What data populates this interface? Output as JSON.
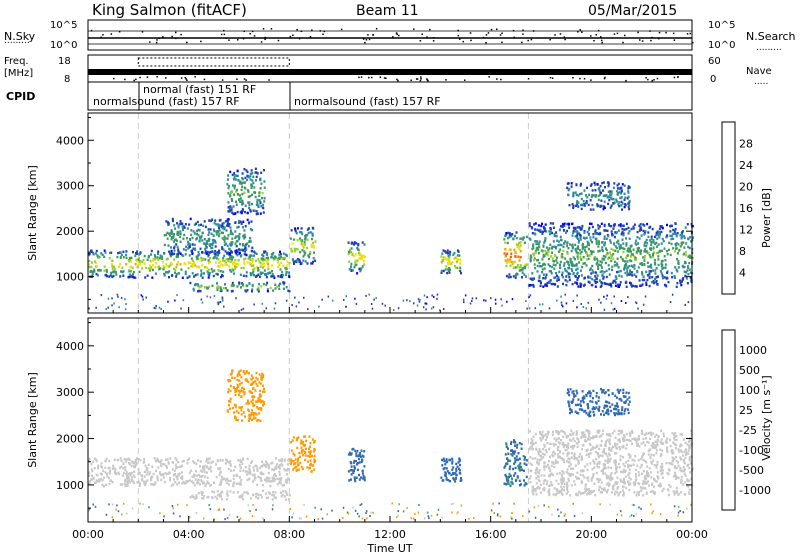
{
  "header": {
    "title": "King Salmon (fitACF)",
    "beam": "Beam 11",
    "date": "05/Mar/2015"
  },
  "top_panels": {
    "nsky_label": "N.Sky",
    "nsky_ticks": [
      "10^5",
      "10^0"
    ],
    "nsearch_label": "N.Search",
    "nsearch_ticks": [
      "10^5",
      "10^0"
    ],
    "freq_label": "Freq.",
    "freq_unit": "[MHz]",
    "freq_ticks": [
      "18",
      "8"
    ],
    "nave_label": "Nave",
    "nave_ticks": [
      "60",
      "0"
    ],
    "cpid_label": "CPID",
    "cpid_segments": [
      "normalsound (fast) 157 RF",
      "normal (fast) 151 RF",
      "normalsound (fast) 157 RF"
    ]
  },
  "colors": {
    "power_scale": [
      "#0000ff",
      "#1d3fb6",
      "#2f8a9a",
      "#3a9a5c",
      "#9acd32",
      "#f0e000",
      "#f6a000",
      "#f06000",
      "#ff0000"
    ],
    "velocity_scale": [
      "#ff0000",
      "#ff5a00",
      "#ff9a00",
      "#c8c8c8",
      "#c8c8c8",
      "#60c030",
      "#3a9a5c",
      "#2f6ab0",
      "#1d3fb6"
    ],
    "ground_scatter": "#c8c8c8"
  },
  "chart_data": [
    {
      "type": "heatmap",
      "panel": "power",
      "ylabel": "Slant Range [km]",
      "xlim": [
        "00:00",
        "24:00"
      ],
      "ylim": [
        200,
        4600
      ],
      "y_ticks": [
        1000,
        2000,
        3000,
        4000
      ],
      "x_ticks": [
        "00:00",
        "04:00",
        "08:00",
        "12:00",
        "16:00",
        "20:00",
        "00:00"
      ],
      "colorbar_label": "Power [dB]",
      "colorbar_ticks": [
        4,
        8,
        12,
        16,
        20,
        24,
        28
      ],
      "features": [
        {
          "t_start": 0.0,
          "t_end": 8.0,
          "range_start": 1000,
          "range_end": 1600,
          "level": 20
        },
        {
          "t_start": 3.0,
          "t_end": 6.5,
          "range_start": 1500,
          "range_end": 2300,
          "level": 12
        },
        {
          "t_start": 4.0,
          "t_end": 8.0,
          "range_start": 700,
          "range_end": 900,
          "level": 16
        },
        {
          "t_start": 5.5,
          "t_end": 7.0,
          "range_start": 2400,
          "range_end": 3400,
          "level": 14
        },
        {
          "t_start": 8.0,
          "t_end": 9.0,
          "range_start": 1300,
          "range_end": 2100,
          "level": 18
        },
        {
          "t_start": 10.3,
          "t_end": 11.0,
          "range_start": 1100,
          "range_end": 1800,
          "level": 20
        },
        {
          "t_start": 14.0,
          "t_end": 14.8,
          "range_start": 1100,
          "range_end": 1600,
          "level": 22
        },
        {
          "t_start": 16.5,
          "t_end": 17.4,
          "range_start": 1000,
          "range_end": 2000,
          "level": 26
        },
        {
          "t_start": 17.5,
          "t_end": 24.0,
          "range_start": 800,
          "range_end": 2200,
          "level": 14
        },
        {
          "t_start": 19.0,
          "t_end": 21.5,
          "range_start": 2500,
          "range_end": 3100,
          "level": 10
        }
      ]
    },
    {
      "type": "heatmap",
      "panel": "velocity",
      "ylabel": "Slant Range [km]",
      "xlabel": "Time UT",
      "xlim": [
        "00:00",
        "24:00"
      ],
      "ylim": [
        200,
        4600
      ],
      "y_ticks": [
        1000,
        2000,
        3000,
        4000
      ],
      "x_ticks": [
        "00:00",
        "04:00",
        "08:00",
        "12:00",
        "16:00",
        "20:00",
        "00:00"
      ],
      "colorbar_label": "Velocity [m s⁻¹]",
      "colorbar_ticks": [
        1000,
        500,
        100,
        25,
        -25,
        -100,
        -500,
        -1000
      ],
      "features": [
        {
          "t_start": 0.0,
          "t_end": 8.0,
          "range_start": 1000,
          "range_end": 1600,
          "velocity": 0
        },
        {
          "t_start": 4.0,
          "t_end": 8.0,
          "range_start": 700,
          "range_end": 900,
          "velocity": 0
        },
        {
          "t_start": 5.5,
          "t_end": 7.0,
          "range_start": 2400,
          "range_end": 3500,
          "velocity": -300
        },
        {
          "t_start": 8.0,
          "t_end": 9.0,
          "range_start": 1300,
          "range_end": 2100,
          "velocity": -400
        },
        {
          "t_start": 10.3,
          "t_end": 11.0,
          "range_start": 1100,
          "range_end": 1800,
          "velocity": 300
        },
        {
          "t_start": 14.0,
          "t_end": 14.8,
          "range_start": 1100,
          "range_end": 1600,
          "velocity": 300
        },
        {
          "t_start": 16.5,
          "t_end": 17.4,
          "range_start": 1000,
          "range_end": 2000,
          "velocity": 150
        },
        {
          "t_start": 17.5,
          "t_end": 24.0,
          "range_start": 800,
          "range_end": 2200,
          "velocity": 0
        },
        {
          "t_start": 19.0,
          "t_end": 21.5,
          "range_start": 2500,
          "range_end": 3100,
          "velocity": 300
        }
      ]
    }
  ]
}
